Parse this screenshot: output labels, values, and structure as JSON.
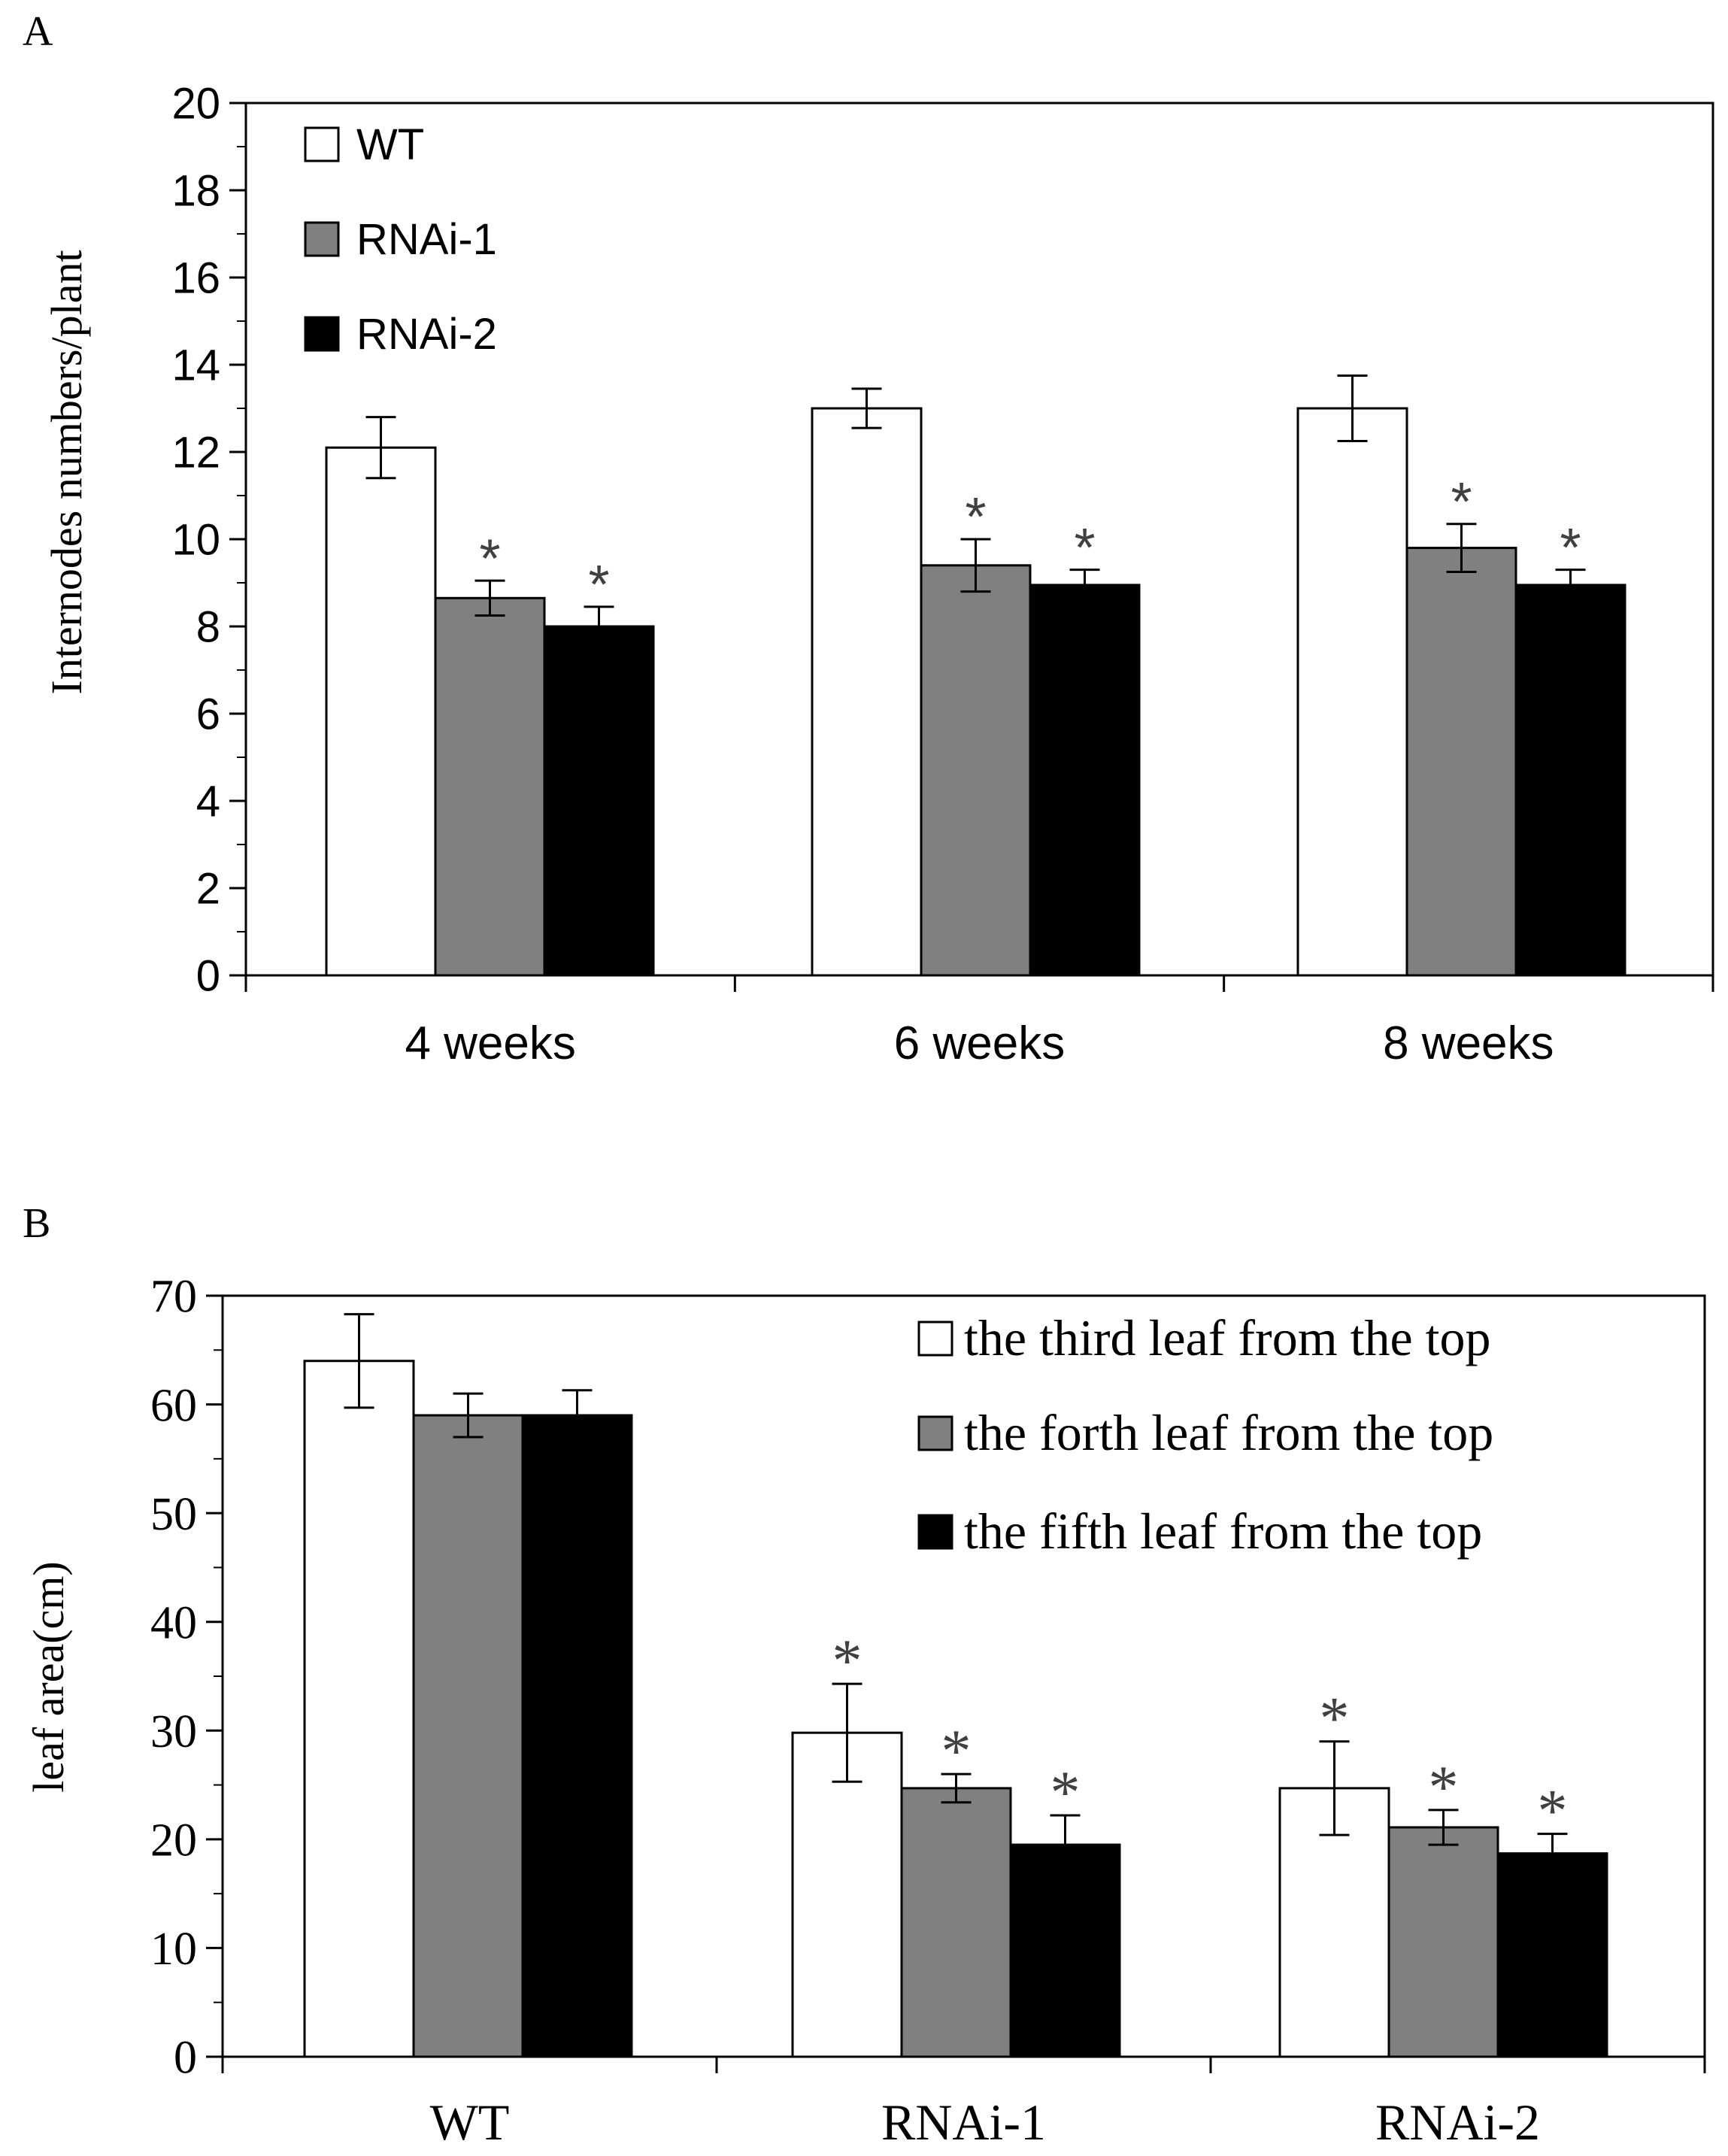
{
  "colors": {
    "series": [
      "#ffffff",
      "#808080",
      "#000000"
    ],
    "stroke": "#000000",
    "star": "#404040"
  },
  "chart_data": [
    {
      "panel_label": "A",
      "type": "bar",
      "title": "",
      "xlabel": "",
      "ylabel": "Internodes numbers/plant",
      "ylim": [
        0,
        20
      ],
      "yticks": [
        0,
        2,
        4,
        6,
        8,
        10,
        12,
        14,
        16,
        18,
        20
      ],
      "categories": [
        "4 weeks",
        "6 weeks",
        "8 weeks"
      ],
      "legend_position": "top-left",
      "series": [
        {
          "name": "WT",
          "values": [
            12.1,
            13.0,
            13.0
          ],
          "errors": [
            0.7,
            0.45,
            0.75
          ],
          "significant": [
            false,
            false,
            false
          ]
        },
        {
          "name": "RNAi-1",
          "values": [
            8.65,
            9.4,
            9.8
          ],
          "errors": [
            0.4,
            0.6,
            0.55
          ],
          "significant": [
            true,
            true,
            true
          ]
        },
        {
          "name": "RNAi-2",
          "values": [
            8.0,
            8.95,
            8.95
          ],
          "errors": [
            0.45,
            0.35,
            0.35
          ],
          "significant": [
            true,
            true,
            true
          ]
        }
      ],
      "significance_marker": "*"
    },
    {
      "panel_label": "B",
      "type": "bar",
      "title": "",
      "xlabel": "",
      "ylabel": "leaf area(cm)",
      "ylim": [
        0,
        70
      ],
      "yticks": [
        0,
        10,
        20,
        30,
        40,
        50,
        60,
        70
      ],
      "categories": [
        "WT",
        "RNAi-1",
        "RNAi-2"
      ],
      "legend_position": "top-right",
      "series": [
        {
          "name": "the third leaf from the top",
          "values": [
            64.0,
            29.8,
            24.7
          ],
          "errors": [
            4.3,
            4.5,
            4.3
          ],
          "significant": [
            false,
            true,
            true
          ]
        },
        {
          "name": "the forth leaf from the top",
          "values": [
            59.0,
            24.7,
            21.1
          ],
          "errors": [
            2.0,
            1.3,
            1.6
          ],
          "significant": [
            false,
            true,
            true
          ]
        },
        {
          "name": "the fifth leaf from the top",
          "values": [
            59.0,
            19.5,
            18.7
          ],
          "errors": [
            2.3,
            2.7,
            1.8
          ],
          "significant": [
            false,
            true,
            true
          ]
        }
      ],
      "significance_marker": "*"
    }
  ]
}
